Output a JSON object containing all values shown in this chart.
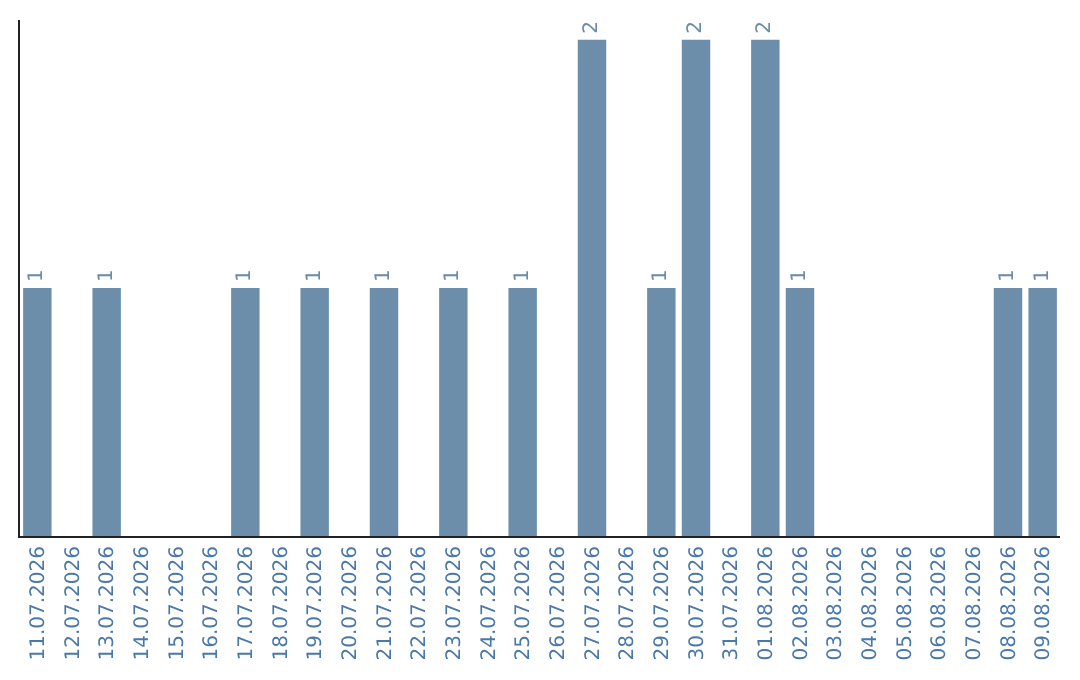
{
  "chart_data": {
    "type": "bar",
    "categories": [
      "11.07.2026",
      "12.07.2026",
      "13.07.2026",
      "14.07.2026",
      "15.07.2026",
      "16.07.2026",
      "17.07.2026",
      "18.07.2026",
      "19.07.2026",
      "20.07.2026",
      "21.07.2026",
      "22.07.2026",
      "23.07.2026",
      "24.07.2026",
      "25.07.2026",
      "26.07.2026",
      "27.07.2026",
      "28.07.2026",
      "29.07.2026",
      "30.07.2026",
      "31.07.2026",
      "01.08.2026",
      "02.08.2026",
      "03.08.2026",
      "04.08.2026",
      "05.08.2026",
      "06.08.2026",
      "07.08.2026",
      "08.08.2026",
      "09.08.2026"
    ],
    "values": [
      1,
      0,
      1,
      0,
      0,
      0,
      1,
      0,
      1,
      0,
      1,
      0,
      1,
      0,
      1,
      0,
      2,
      0,
      1,
      2,
      0,
      2,
      1,
      0,
      0,
      0,
      0,
      0,
      1,
      1
    ],
    "value_labels": [
      "1",
      null,
      "1",
      null,
      null,
      null,
      "1",
      null,
      "1",
      null,
      "1",
      null,
      "1",
      null,
      "1",
      null,
      "2",
      null,
      "1",
      "2",
      null,
      "2",
      "1",
      null,
      null,
      null,
      null,
      null,
      "1",
      "1"
    ],
    "color": "#6d8eab",
    "ylim": [
      0,
      2.08
    ],
    "tick_labels": "x"
  }
}
